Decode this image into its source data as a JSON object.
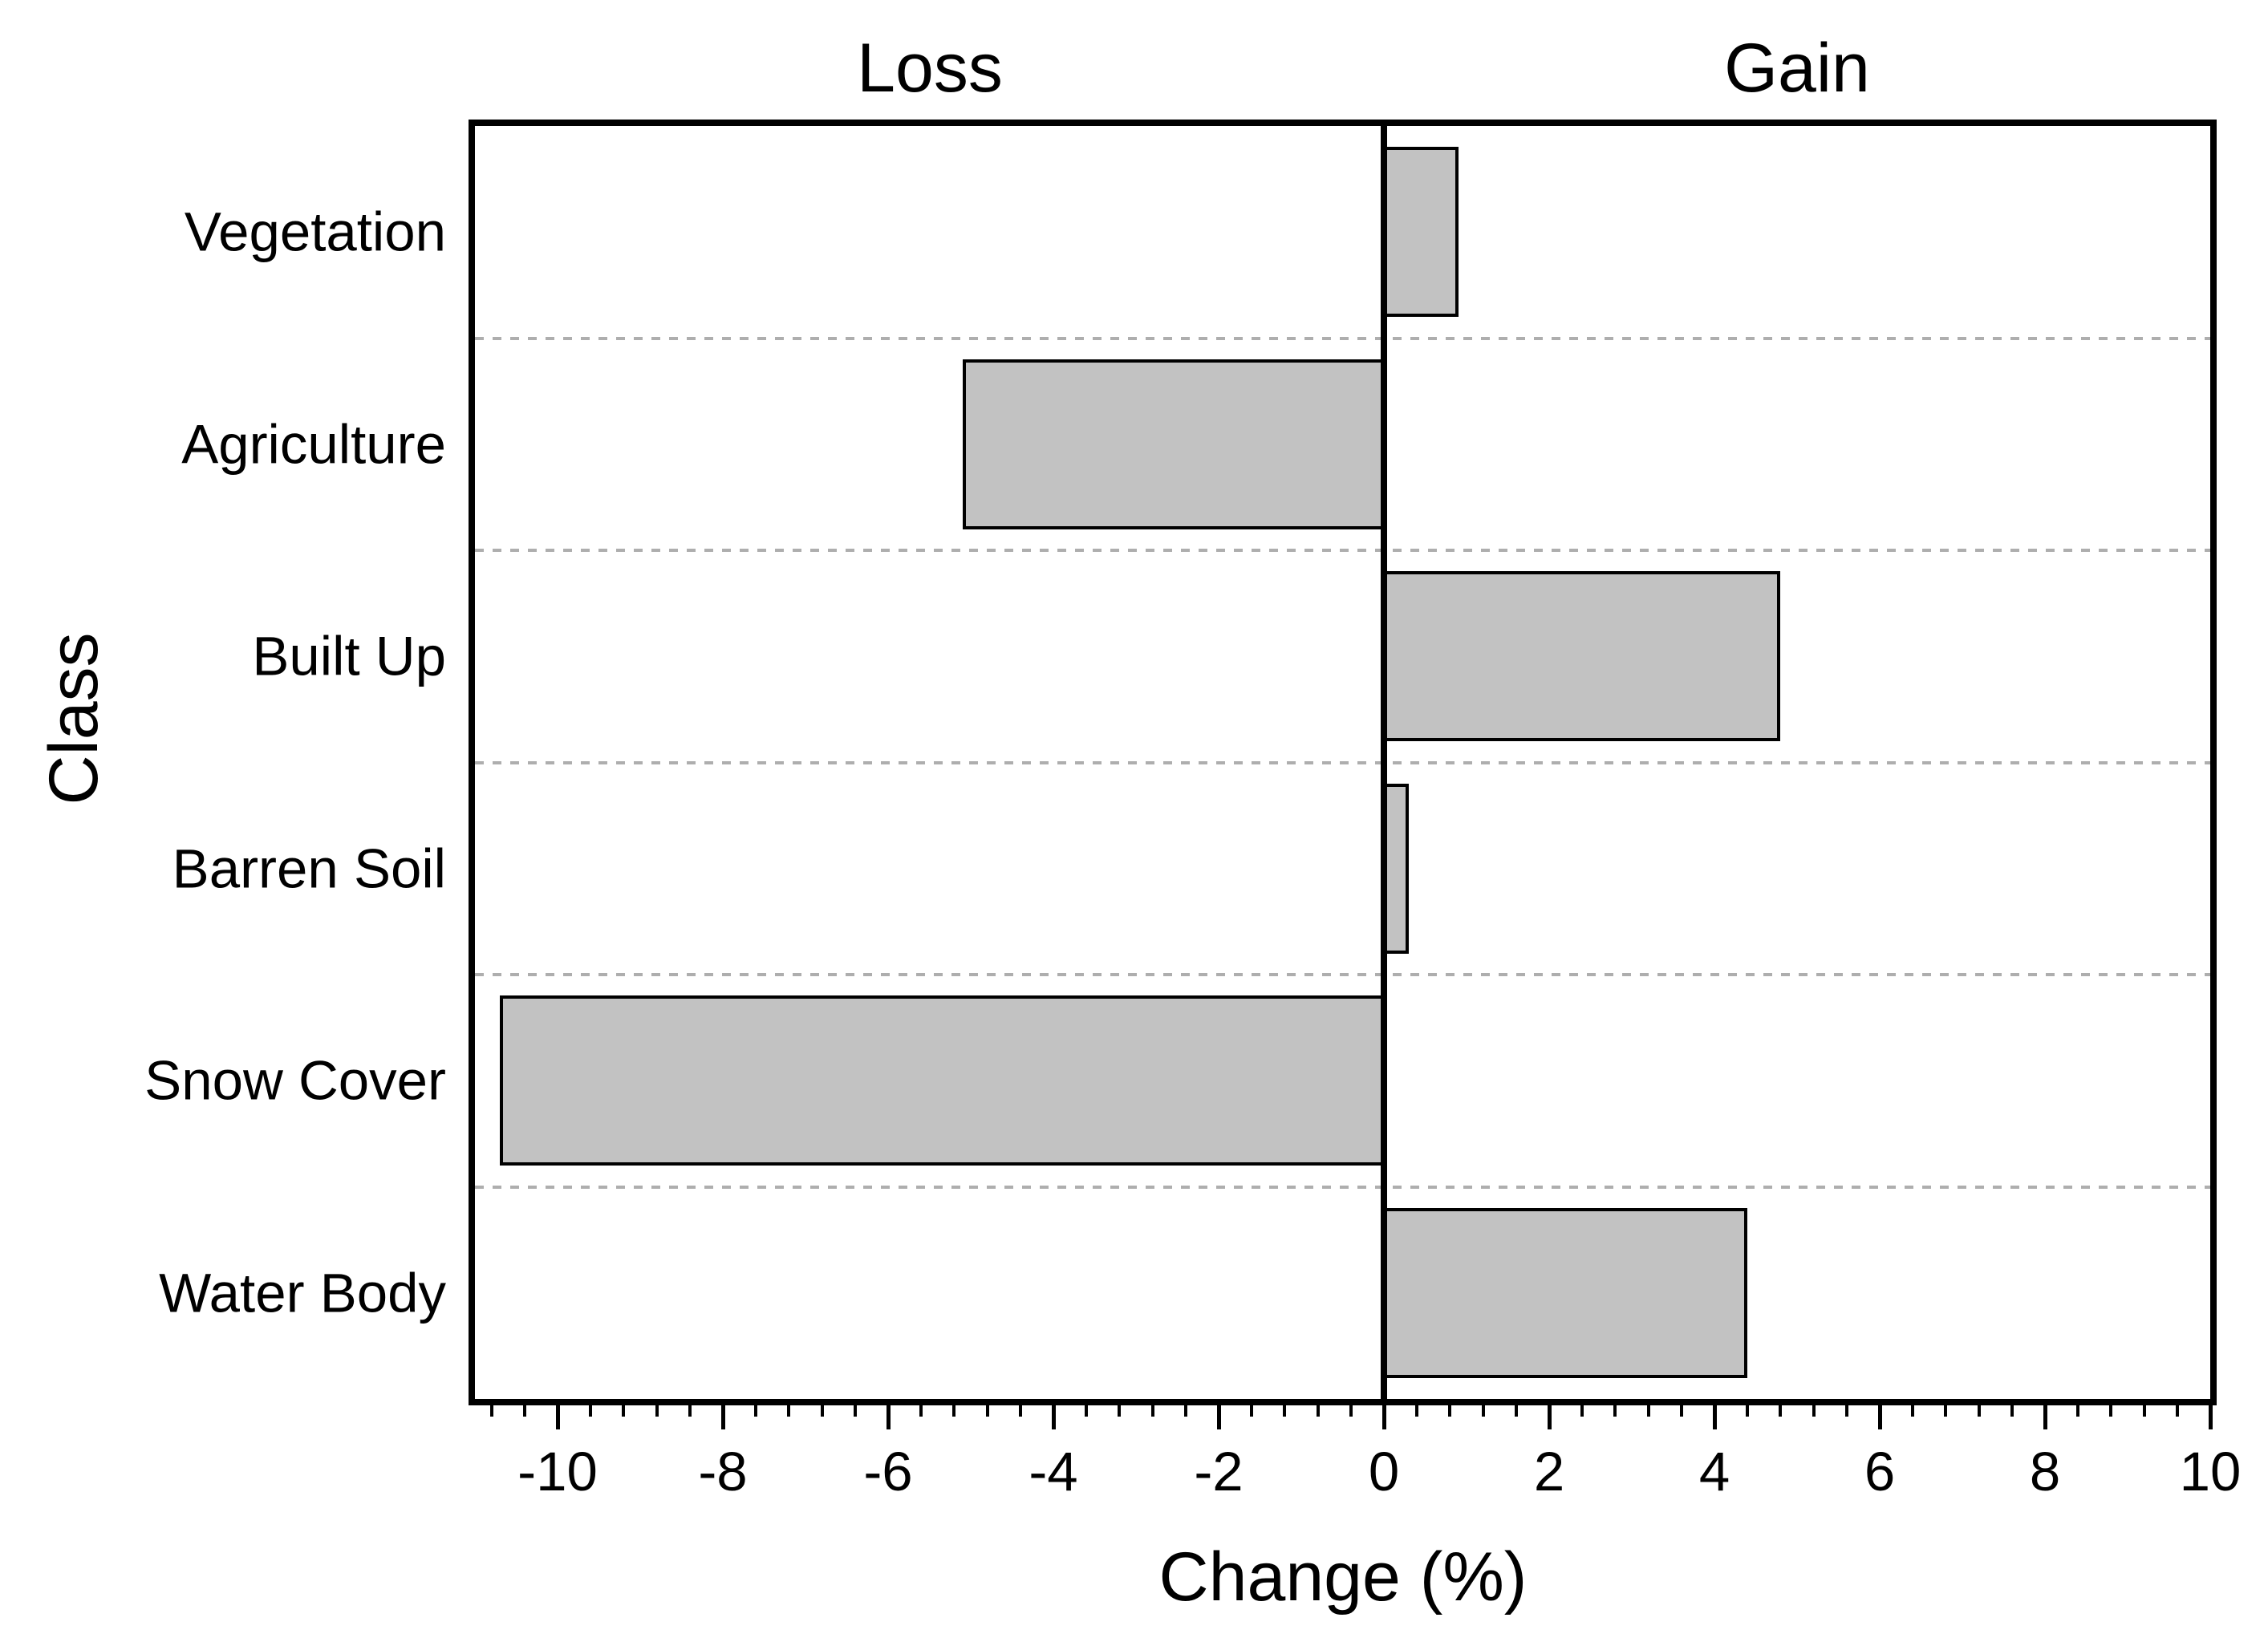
{
  "figure": {
    "background": "#ffffff",
    "text_color": "#000000"
  },
  "chart_data": {
    "type": "bar",
    "orientation": "horizontal",
    "title_left": "Loss",
    "title_right": "Gain",
    "xlabel": "Change (%)",
    "ylabel": "Class",
    "categories": [
      "Vegetation",
      "Agriculture",
      "Built Up",
      "Barren Soil",
      "Snow Cover",
      "Water Body"
    ],
    "values": [
      0.9,
      -5.1,
      4.8,
      0.3,
      -10.7,
      4.4
    ],
    "series": [
      {
        "name": "Change (%)",
        "values": [
          0.9,
          -5.1,
          4.8,
          0.3,
          -10.7,
          4.4
        ]
      }
    ],
    "xlim": [
      -11,
      10
    ],
    "x_major_ticks": [
      -10,
      -8,
      -6,
      -4,
      -2,
      0,
      2,
      4,
      6,
      8,
      10
    ],
    "x_major_tick_labels": [
      "-10",
      "-8",
      "-6",
      "-4",
      "-2",
      "0",
      "2",
      "4",
      "6",
      "8",
      "10"
    ],
    "x_minor_tick_step": 0.4,
    "grid": "dashed horizontal lines at category boundaries",
    "legend": "none",
    "bar_fill_color": "#c2c2c2",
    "bar_border_color": "#000000",
    "axis_color": "#000000",
    "grid_color": "#aeaeae",
    "bar_thickness_fraction": 0.8
  }
}
